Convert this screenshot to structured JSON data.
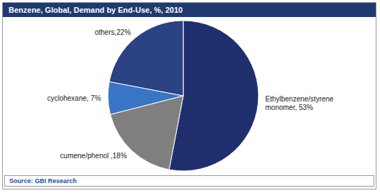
{
  "chart_data": {
    "type": "pie",
    "title": "Benzene, Global, Demand by End-Use, %, 2010",
    "categories": [
      "Ethylbenzene/styrene monomer",
      "cumene/phenol",
      "cyclohexane",
      "others"
    ],
    "values": [
      53,
      18,
      7,
      22
    ],
    "value_labels": [
      "Ethylbenzene/styrene monomer, 53%",
      "cumene/phenol ,18%",
      "cyclohexane, 7%",
      "others,22%"
    ],
    "colors": [
      "#1f2f6e",
      "#7f7f7f",
      "#3a74c4",
      "#2b4283"
    ],
    "data_labels": true,
    "source": "Source: GBI Research"
  }
}
